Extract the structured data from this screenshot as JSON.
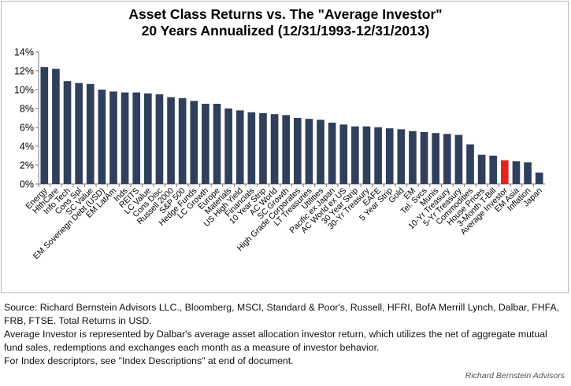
{
  "chart_data": {
    "type": "bar",
    "title_line1": "Asset Class Returns vs. The \"Average Investor\"",
    "title_line2": "20 Years Annualized (12/31/1993-12/31/2013)",
    "xlabel": "",
    "ylabel": "",
    "ylim": [
      0,
      14
    ],
    "ytick_values": [
      0,
      2,
      4,
      6,
      8,
      10,
      12,
      14
    ],
    "ytick_labels": [
      "0%",
      "2%",
      "4%",
      "6%",
      "8%",
      "10%",
      "12%",
      "14%"
    ],
    "grid": false,
    "legend": "none",
    "categories": [
      "Energy",
      "HlthCare",
      "Info Tech",
      "Cons Spl",
      "SC Value",
      "EM Soveriegn Debt (USD)",
      "EM LatAm",
      "Inds",
      "REITS",
      "LC Value",
      "Cons Disc",
      "Russell 2000",
      "S&P 500",
      "Hedge Funds",
      "LC Growth",
      "Europe",
      "Materials",
      "US High Yield",
      "Financials",
      "10 Year Strip",
      "AC World",
      "SC Growth",
      "High Grade Corporates",
      "LT Treasuries",
      "Utilities",
      "Pacific ex Japan",
      "AC World ex US",
      "30 Year Strip",
      "30-Yr Treasury",
      "EAFE",
      "5 Year Strip",
      "Gold",
      "EM",
      "Tel. Svcs",
      "Munis",
      "10-Yr Treasury",
      "5-Yr Treasury",
      "Commodities",
      "House Prices",
      "3-Month T-Bill",
      "Average Investor",
      "EM Asia",
      "Inflation",
      "Japan"
    ],
    "values": [
      12.4,
      12.2,
      10.9,
      10.7,
      10.6,
      10.0,
      9.8,
      9.7,
      9.7,
      9.6,
      9.5,
      9.2,
      9.1,
      8.8,
      8.5,
      8.5,
      8.0,
      7.8,
      7.6,
      7.5,
      7.4,
      7.3,
      7.0,
      6.9,
      6.8,
      6.5,
      6.3,
      6.1,
      6.1,
      6.0,
      5.9,
      5.8,
      5.6,
      5.5,
      5.4,
      5.3,
      5.2,
      4.2,
      3.1,
      3.0,
      2.5,
      2.4,
      2.3,
      1.2
    ],
    "bar_color": "#2f3f5c",
    "highlight_category": "Average Investor",
    "highlight_color": "#e0251b"
  },
  "notes": {
    "line1": "Source: Richard Bernstein Advisors LLC., Bloomberg, MSCI, Standard & Poor's, Russell, HFRI, BofA Merrill Lynch, Dalbar, FHFA,",
    "line2": "FRB, FTSE.  Total Returns in USD.",
    "line3": "Average Investor is represented by Dalbar's average asset allocation investor return, which utilizes the net of aggregate mutual",
    "line4": "fund sales, redemptions and exchanges each month as a measure of investor behavior.",
    "line5": "For Index descriptors, see \"Index Descriptions\" at end of document."
  },
  "watermark": "Richard Bernstein Advisors"
}
